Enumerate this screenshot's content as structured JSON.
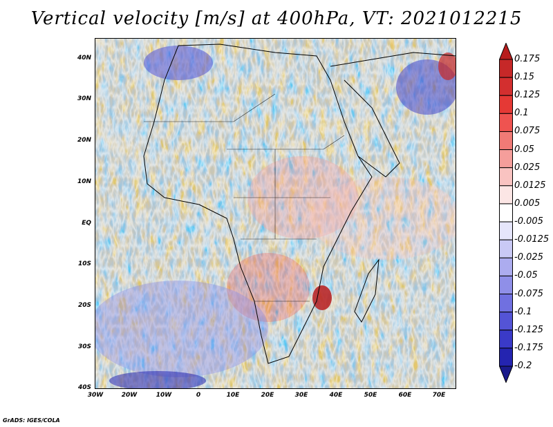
{
  "title": "Vertical velocity [m/s] at 400hPa, VT: 2021012215",
  "credit": "GrADS: IGES/COLA",
  "map": {
    "region": "Africa and Middle East",
    "lon_range": [
      -30,
      75
    ],
    "lat_range": [
      -40,
      45
    ],
    "lat_ticks": [
      "40N",
      "30N",
      "20N",
      "10N",
      "EQ",
      "10S",
      "20S",
      "30S",
      "40S"
    ],
    "lon_ticks": [
      "30W",
      "20W",
      "10W",
      "0",
      "10E",
      "20E",
      "30E",
      "40E",
      "50E",
      "60E",
      "70E"
    ]
  },
  "colorbar": {
    "labels": [
      "0.175",
      "0.15",
      "0.125",
      "0.1",
      "0.075",
      "0.05",
      "0.025",
      "0.0125",
      "0.005",
      "-0.005",
      "-0.0125",
      "-0.025",
      "-0.05",
      "-0.075",
      "-0.1",
      "-0.125",
      "-0.175",
      "-0.2"
    ],
    "colors": [
      "#b71c1c",
      "#c62828",
      "#d32f2f",
      "#e53935",
      "#ef5350",
      "#f07a76",
      "#f59e9b",
      "#f9c3c1",
      "#fce6e5",
      "#ffffff",
      "#e6e6fb",
      "#c9c9f5",
      "#acacef",
      "#8f8fe8",
      "#7070e0",
      "#5454d6",
      "#3a3ac8",
      "#2424b0",
      "#1a1a8c"
    ]
  }
}
